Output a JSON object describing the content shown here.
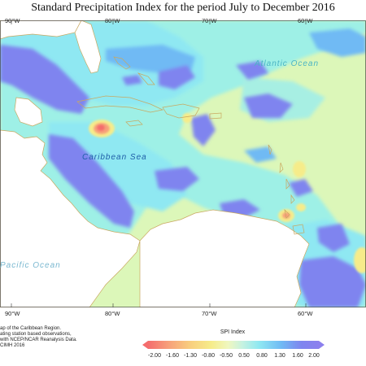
{
  "title": "Standard Precipitation Index for the period July to December 2016",
  "axes": {
    "top": [
      "90°W",
      "80°W",
      "70°W",
      "60°W"
    ],
    "bottom": [
      "90°W",
      "80°W",
      "70°W",
      "60°W"
    ]
  },
  "map_labels": {
    "atlantic": "Atlantic Ocean",
    "caribbean": "Caribbean Sea",
    "pacific": "Pacific Ocean"
  },
  "credits": [
    "ap of the Caribbean Region.",
    "ating station based observations,",
    "with NCEP/NCAR Reanalysis Data.",
    "CIMH 2016"
  ],
  "legend": {
    "title": "SPI Index",
    "ticks": [
      "-2.00",
      "-1.60",
      "-1.30",
      "-0.80",
      "-0.50",
      "0.50",
      "0.80",
      "1.30",
      "1.60",
      "2.00"
    ],
    "colors": [
      "#f46d6d",
      "#f7a07a",
      "#f8cf7e",
      "#f6ec8a",
      "#f2f7b8",
      "#e3f3c0",
      "#c7f2e0",
      "#8fe8f2",
      "#6fbaf4",
      "#7f84ef",
      "#8c80ee"
    ]
  },
  "colors": {
    "background_green": "#dcf7b9",
    "land": "#ffffff",
    "coast": "#c9a860",
    "dry_red": "#f46d6d",
    "dry_yellow": "#f7e07a",
    "wet_blue": "#7f84ef",
    "wet_cyan": "#8fe8f2"
  }
}
